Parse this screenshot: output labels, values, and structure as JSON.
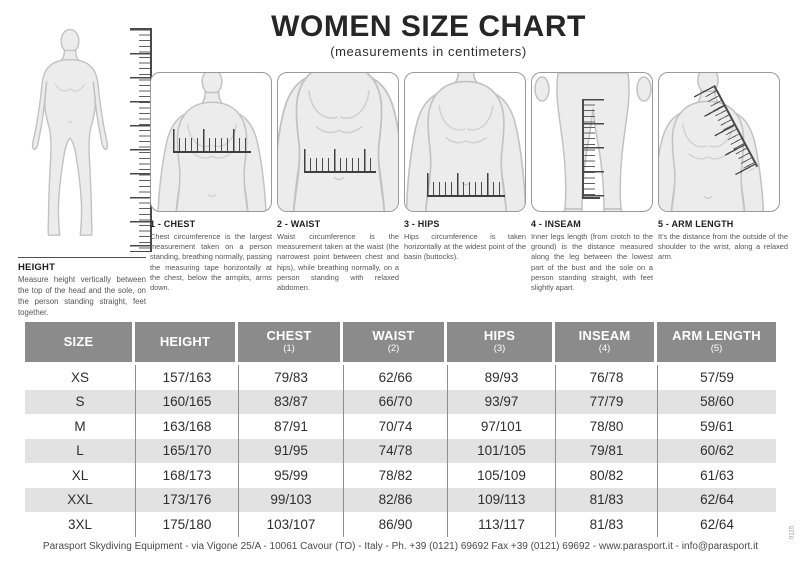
{
  "header": {
    "title": "WOMEN SIZE CHART",
    "subtitle": "(measurements in centimeters)"
  },
  "height_section": {
    "heading": "HEIGHT",
    "description": "Measure height vertically between the top of the head and the sole, on the person standing straight, feet together."
  },
  "panels": [
    {
      "heading": "1 - CHEST",
      "description": "Chest circumference is the largest measurement taken on a person standing, breathing normally, passing the measuring tape horizontally at the chest, below the armpits, arms down."
    },
    {
      "heading": "2 - WAIST",
      "description": "Waist circumference is the measurement taken at the waist (the narrowest point between chest and hips), while breathing normally, on a person standing with relaxed abdomen."
    },
    {
      "heading": "3 - HIPS",
      "description": "Hips circumference is taken horizontally at the widest point of the basin (buttocks)."
    },
    {
      "heading": "4 - INSEAM",
      "description": "Inner legs length (from crotch to the ground) is the distance measured along the leg between the lowest part of the bust and the sole on a person standing straight, with feet slightly apart."
    },
    {
      "heading": "5 - ARM LENGTH",
      "description": "It's the distance from the outside of the shoulder to the wrist, along a relaxed arm."
    }
  ],
  "table": {
    "columns": [
      {
        "label": "SIZE",
        "sub": ""
      },
      {
        "label": "HEIGHT",
        "sub": ""
      },
      {
        "label": "CHEST",
        "sub": "(1)"
      },
      {
        "label": "WAIST",
        "sub": "(2)"
      },
      {
        "label": "HIPS",
        "sub": "(3)"
      },
      {
        "label": "INSEAM",
        "sub": "(4)"
      },
      {
        "label": "ARM LENGTH",
        "sub": "(5)"
      }
    ],
    "rows": [
      [
        "XS",
        "157/163",
        "79/83",
        "62/66",
        "89/93",
        "76/78",
        "57/59"
      ],
      [
        "S",
        "160/165",
        "83/87",
        "66/70",
        "93/97",
        "77/79",
        "58/60"
      ],
      [
        "M",
        "163/168",
        "87/91",
        "70/74",
        "97/101",
        "78/80",
        "59/61"
      ],
      [
        "L",
        "165/170",
        "91/95",
        "74/78",
        "101/105",
        "79/81",
        "60/62"
      ],
      [
        "XL",
        "168/173",
        "95/99",
        "78/82",
        "105/109",
        "80/82",
        "61/63"
      ],
      [
        "XXL",
        "173/176",
        "99/103",
        "82/86",
        "109/113",
        "81/83",
        "62/64"
      ],
      [
        "3XL",
        "175/180",
        "103/107",
        "86/90",
        "113/117",
        "81/83",
        "62/64"
      ]
    ]
  },
  "footer": {
    "text": "Parasport Skydiving Equipment - via Vigone 25/A - 10061 Cavour (TO) - Italy - Ph. +39 (0121) 69692 Fax +39 (0121) 69692 - www.parasport.it - info@parasport.it"
  },
  "side_code": "0115",
  "colors": {
    "table_header_bg": "#8b8b8b",
    "alt_row_bg": "#e2e2e2",
    "figure_fill": "#ececec",
    "figure_stroke": "#c2c2c2",
    "ink": "#262626"
  }
}
